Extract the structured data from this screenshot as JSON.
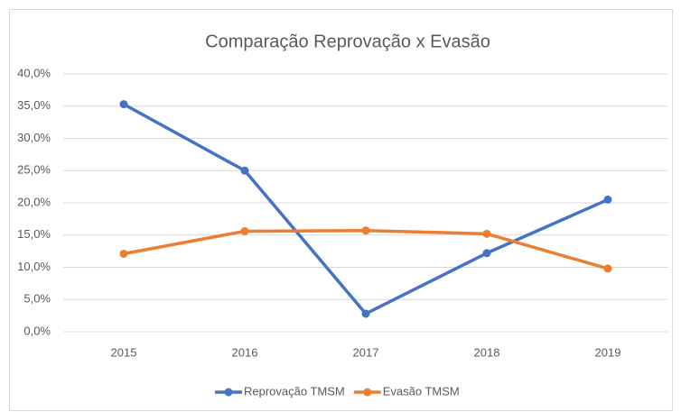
{
  "chart_data": {
    "type": "line",
    "title": "Comparação Reprovação x Evasão",
    "categories": [
      "2015",
      "2016",
      "2017",
      "2018",
      "2019"
    ],
    "series": [
      {
        "name": "Reprovação TMSM",
        "color": "#4472c4",
        "values": [
          35.3,
          25.0,
          2.8,
          12.2,
          20.5
        ]
      },
      {
        "name": "Evasão TMSM",
        "color": "#ed7d31",
        "values": [
          12.1,
          15.6,
          15.7,
          15.2,
          9.8
        ]
      }
    ],
    "ylim": [
      0,
      40
    ],
    "yticks": [
      {
        "value": 0,
        "label": "0,0%"
      },
      {
        "value": 5,
        "label": "5,0%"
      },
      {
        "value": 10,
        "label": "10,0%"
      },
      {
        "value": 15,
        "label": "15,0%"
      },
      {
        "value": 20,
        "label": "20,0%"
      },
      {
        "value": 25,
        "label": "25,0%"
      },
      {
        "value": 30,
        "label": "30,0%"
      },
      {
        "value": 35,
        "label": "35,0%"
      },
      {
        "value": 40,
        "label": "40,0%"
      }
    ],
    "grid": true,
    "legend": "bottom"
  }
}
